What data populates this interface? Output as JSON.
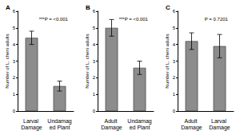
{
  "chart_data": [
    {
      "type": "bar",
      "title": "A",
      "annotation": "***P = <0.001",
      "y_label": "Number of L. cheni adults",
      "categories": [
        "Larval Damage",
        "Undamaged Plant"
      ],
      "values": [
        4.4,
        1.5
      ],
      "errors": [
        0.4,
        0.3
      ],
      "color": "#8c8c8c",
      "ylim": [
        0,
        6
      ],
      "yticks": [
        0,
        1,
        2,
        3,
        4,
        5,
        6
      ]
    },
    {
      "type": "bar",
      "title": "B",
      "annotation": "***P = <0.001",
      "y_label": "Number of L. cheni adults",
      "categories": [
        "Adult Damage",
        "Undamaged Plant"
      ],
      "values": [
        5.0,
        2.6
      ],
      "errors": [
        0.5,
        0.4
      ],
      "color": "#8c8c8c",
      "ylim": [
        0,
        6
      ],
      "yticks": [
        0,
        1,
        2,
        3,
        4,
        5,
        6
      ]
    },
    {
      "type": "bar",
      "title": "C",
      "annotation": "P = 0.7201",
      "y_label": "Number of L. cheni adults",
      "categories": [
        "Adult Damage",
        "Larval Damage"
      ],
      "values": [
        4.2,
        3.9
      ],
      "errors": [
        0.5,
        0.7
      ],
      "color": "#8c8c8c",
      "ylim": [
        0,
        6
      ],
      "yticks": [
        0,
        1,
        2,
        3,
        4,
        5,
        6
      ]
    }
  ]
}
